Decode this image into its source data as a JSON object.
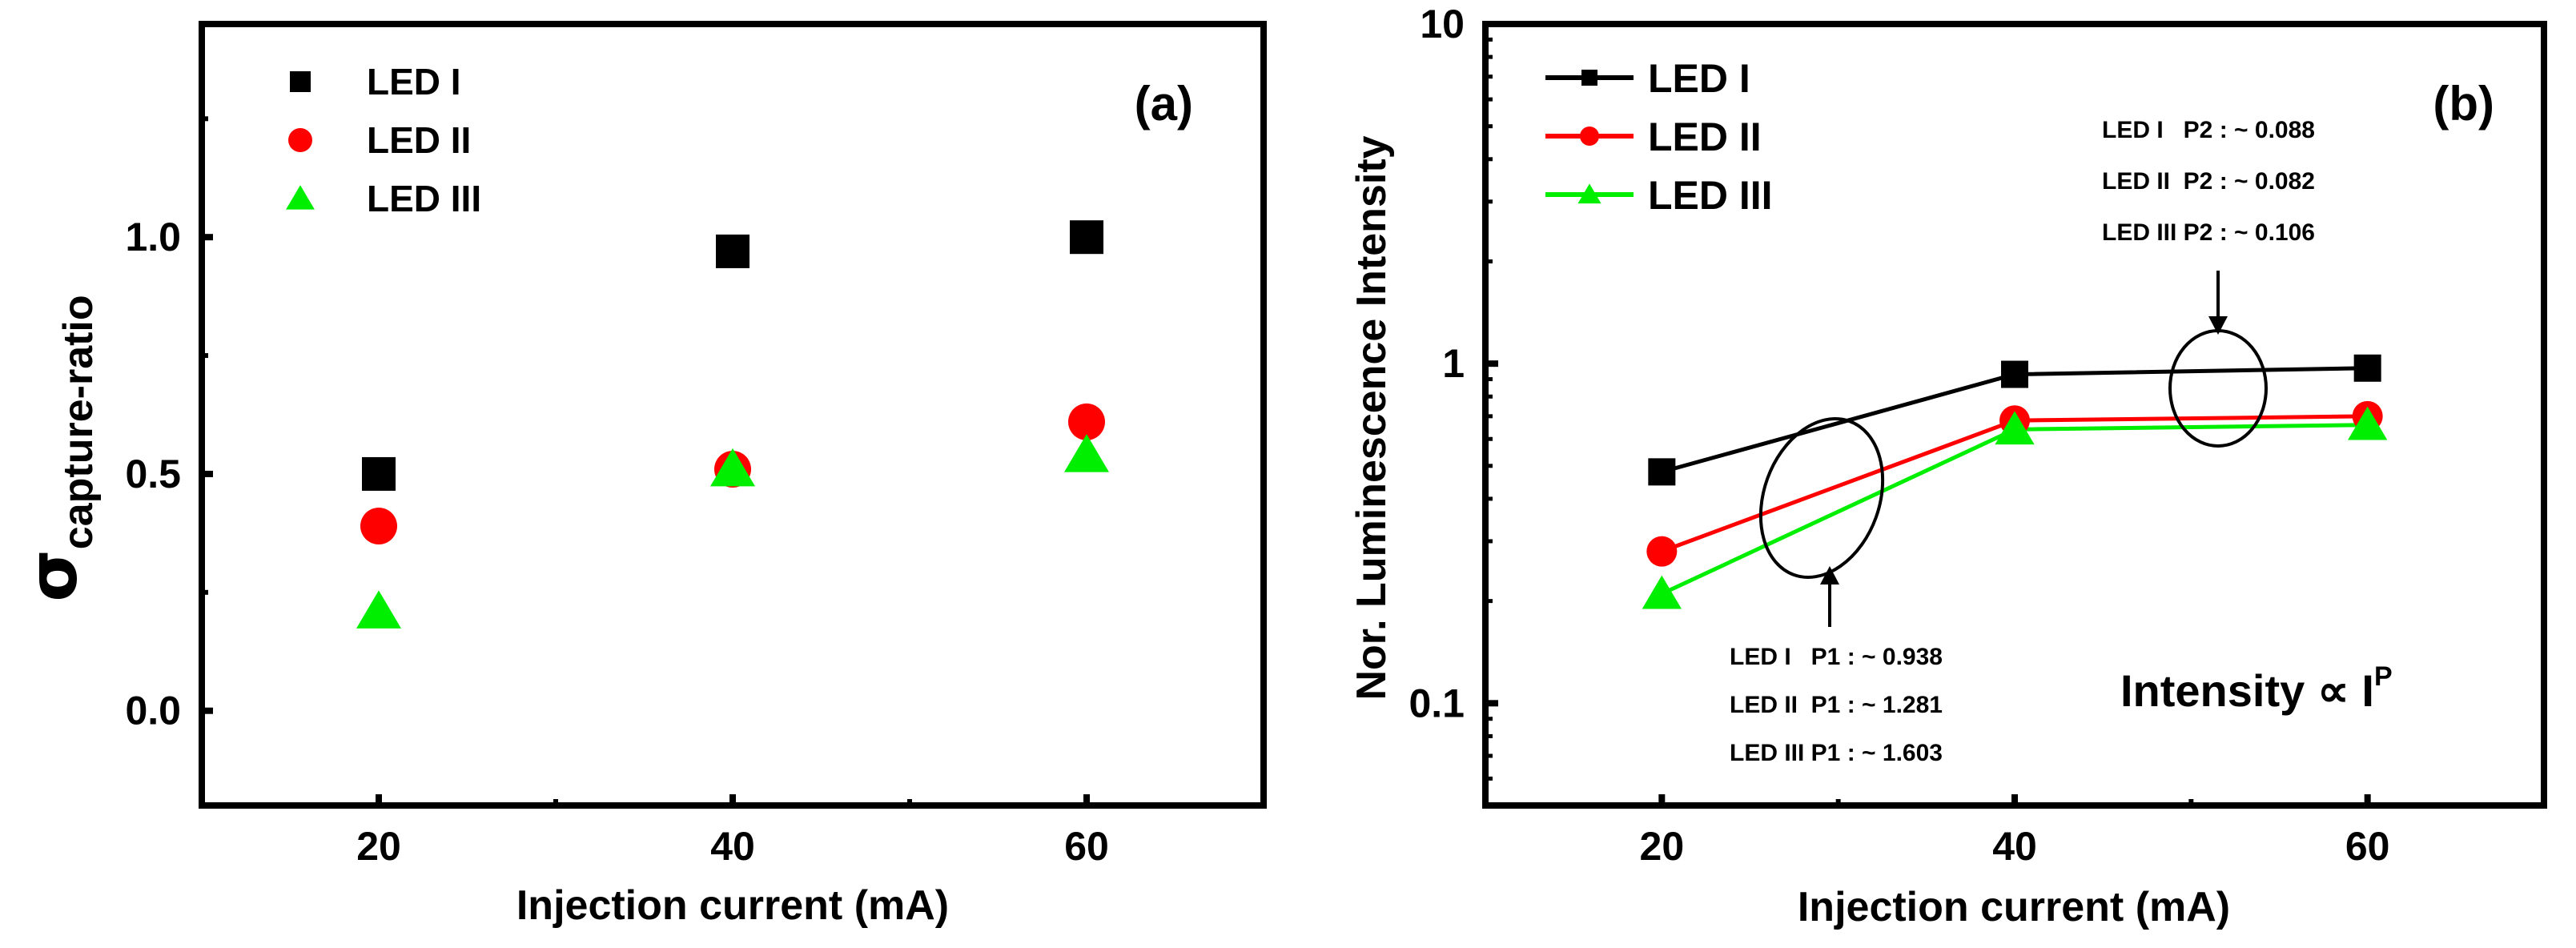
{
  "chart_data": [
    {
      "panel": "(a)",
      "type": "scatter",
      "xlabel": "Injection current (mA)",
      "ylabel": "σ",
      "ylabel_subscript": "capture-ratio",
      "xlim": [
        10,
        70
      ],
      "ylim": [
        -0.2,
        1.45
      ],
      "x_ticks": [
        20,
        40,
        60
      ],
      "y_ticks": [
        0.0,
        0.5,
        1.0
      ],
      "x_tick_labels": [
        "20",
        "40",
        "60"
      ],
      "y_tick_labels": [
        "0.0",
        "0.5",
        "1.0"
      ],
      "legend_position": "top-left",
      "series": [
        {
          "name": "LED I",
          "marker": "square",
          "color": "#000000",
          "x": [
            20,
            40,
            60
          ],
          "values": [
            0.5,
            0.97,
            1.0
          ]
        },
        {
          "name": "LED II",
          "marker": "circle",
          "color": "#ff0000",
          "x": [
            20,
            40,
            60
          ],
          "values": [
            0.39,
            0.51,
            0.61
          ]
        },
        {
          "name": "LED III",
          "marker": "triangle",
          "color": "#00ee00",
          "x": [
            20,
            40,
            60
          ],
          "values": [
            0.21,
            0.51,
            0.54
          ]
        }
      ]
    },
    {
      "panel": "(b)",
      "type": "line",
      "xlabel": "Injection current (mA)",
      "ylabel": "Nor. Luminescence Intensity",
      "yscale": "log",
      "xlim": [
        10,
        70
      ],
      "ylim": [
        0.05,
        10
      ],
      "x_ticks": [
        20,
        40,
        60
      ],
      "y_ticks": [
        0.1,
        1,
        10
      ],
      "x_tick_labels": [
        "20",
        "40",
        "60"
      ],
      "y_tick_labels": [
        "0.1",
        "1",
        "10"
      ],
      "legend_position": "top-left",
      "series": [
        {
          "name": "LED I",
          "marker": "square",
          "color": "#000000",
          "x": [
            20,
            40,
            60
          ],
          "values": [
            0.48,
            0.93,
            0.97
          ]
        },
        {
          "name": "LED II",
          "marker": "circle",
          "color": "#ff0000",
          "x": [
            20,
            40,
            60
          ],
          "values": [
            0.28,
            0.68,
            0.7
          ]
        },
        {
          "name": "LED III",
          "marker": "triangle",
          "color": "#00ee00",
          "x": [
            20,
            40,
            60
          ],
          "values": [
            0.21,
            0.64,
            0.66
          ]
        }
      ],
      "annotations": {
        "p2": [
          "LED I   P2 : ~ 0.088",
          "LED II  P2 : ~ 0.082",
          "LED III P2 : ~ 0.106"
        ],
        "p1": [
          "LED I   P1 : ~ 0.938",
          "LED II  P1 : ~ 1.281",
          "LED III P1 : ~ 1.603"
        ],
        "formula": "Intensity ∝ I",
        "formula_superscript": "P"
      }
    }
  ]
}
